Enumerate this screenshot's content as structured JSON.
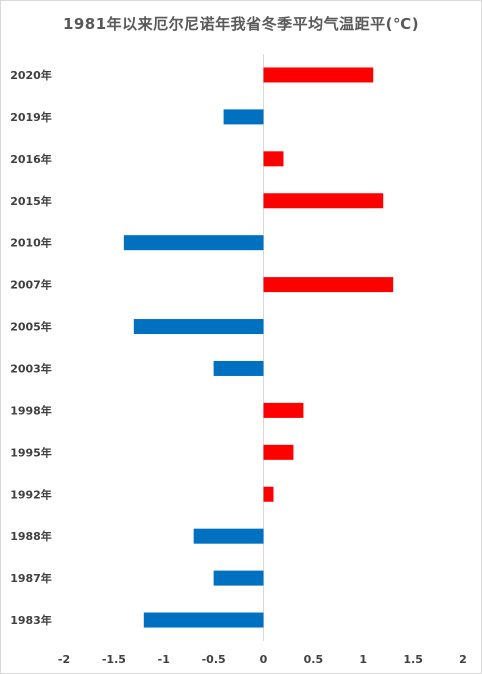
{
  "chart_data": {
    "type": "bar",
    "orientation": "horizontal",
    "title": "1981年以来厄尔尼诺年我省冬季平均气温距平(℃)",
    "categories": [
      "2020年",
      "2019年",
      "2016年",
      "2015年",
      "2010年",
      "2007年",
      "2005年",
      "2003年",
      "1998年",
      "1995年",
      "1992年",
      "1988年",
      "1987年",
      "1983年"
    ],
    "values": [
      1.1,
      -0.4,
      0.2,
      1.2,
      -1.4,
      1.3,
      -1.3,
      -0.5,
      0.4,
      0.3,
      0.1,
      -0.7,
      -0.5,
      -1.2
    ],
    "x_ticks": [
      "-2",
      "-1.5",
      "-1",
      "-0.5",
      "0",
      "0.5",
      "1",
      "1.5",
      "2"
    ],
    "xlim": [
      -2,
      2
    ],
    "grid": false,
    "legend": "none",
    "colors": {
      "positive": "#ff0000",
      "negative": "#0070c0",
      "axis": "#d9d9d9",
      "text": "#404040"
    }
  }
}
